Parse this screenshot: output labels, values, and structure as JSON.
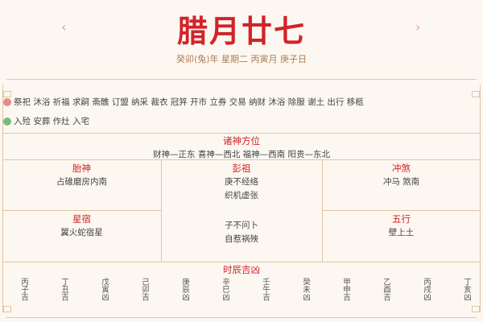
{
  "header": {
    "prev": "‹",
    "next": "›",
    "title": "腊月廿七",
    "subtitle": "癸卯(兔)年 星期二 丙寅月 庚子日"
  },
  "yi": {
    "icon": "yi-icon",
    "color": "#e88a8a",
    "text": "祭祀 沐浴 祈福 求嗣 斋醮 订盟 纳采 裁衣 冠笄 开市 立券 交易 纳财 沐浴 除服 谢土 出行 移柩"
  },
  "ji": {
    "icon": "ji-icon",
    "color": "#7db87d",
    "text": "入殓 安葬 作灶 入宅"
  },
  "zhushen": {
    "title": "诸神方位",
    "text": "财神—正东 喜神—西北 福神—西南 阳贵—东北"
  },
  "taishen": {
    "title": "胎神",
    "text": "占碓磨房内南"
  },
  "pengzu": {
    "title": "彭祖",
    "lines": [
      "庚不经络",
      "织机虚张",
      "子不问卜",
      "自惹祸殃"
    ]
  },
  "chongsha": {
    "title": "冲煞",
    "text": "冲马 煞南"
  },
  "xingsu": {
    "title": "星宿",
    "text": "翼火蛇宿星"
  },
  "wuxing": {
    "title": "五行",
    "text": "壁上土"
  },
  "hours": {
    "title": "时辰吉凶",
    "items": [
      "丙子吉",
      "丁丑吉",
      "戊寅凶",
      "己卯吉",
      "庚辰凶",
      "辛巳凶",
      "壬午吉",
      "癸未凶",
      "甲申吉",
      "乙酉吉",
      "丙戌凶",
      "丁亥凶"
    ]
  },
  "colors": {
    "accent": "#d2232a",
    "border": "#e2c4a2",
    "background": "#fcf8f1"
  }
}
